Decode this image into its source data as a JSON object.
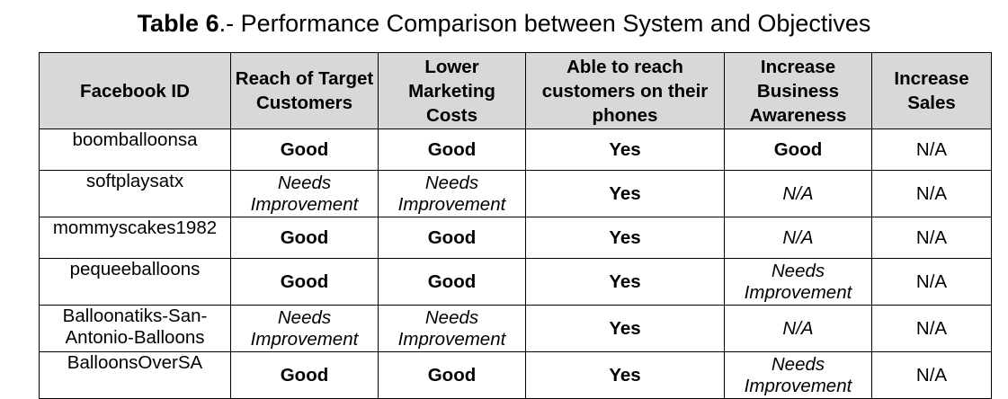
{
  "caption": {
    "bold": "Table 6",
    "rest": ".- Performance Comparison between System and Objectives"
  },
  "headers": [
    "Facebook ID",
    "Reach of Target Customers",
    "Lower Marketing Costs",
    "Able to reach customers on their phones",
    "Increase Business Awareness",
    "Increase Sales"
  ],
  "rows": [
    {
      "id": "boomballoonsa",
      "reach": "Good",
      "costs": "Good",
      "phones": "Yes",
      "awareness": "Good",
      "sales": "N/A"
    },
    {
      "id": "softplaysatx",
      "reach": "Needs Improvement",
      "costs": "Needs Improvement",
      "phones": "Yes",
      "awareness": "N/A",
      "sales": "N/A"
    },
    {
      "id": "mommyscakes1982",
      "reach": "Good",
      "costs": "Good",
      "phones": "Yes",
      "awareness": "N/A",
      "sales": "N/A"
    },
    {
      "id": "pequeeballoons",
      "reach": "Good",
      "costs": "Good",
      "phones": "Yes",
      "awareness": "Needs Improvement",
      "sales": "N/A"
    },
    {
      "id": "Balloonatiks-San-Antonio-Balloons",
      "reach": "Needs Improvement",
      "costs": "Needs Improvement",
      "phones": "Yes",
      "awareness": "N/A",
      "sales": "N/A"
    },
    {
      "id": "BalloonsOverSA",
      "reach": "Good",
      "costs": "Good",
      "phones": "Yes",
      "awareness": "Needs Improvement",
      "sales": "N/A"
    }
  ]
}
